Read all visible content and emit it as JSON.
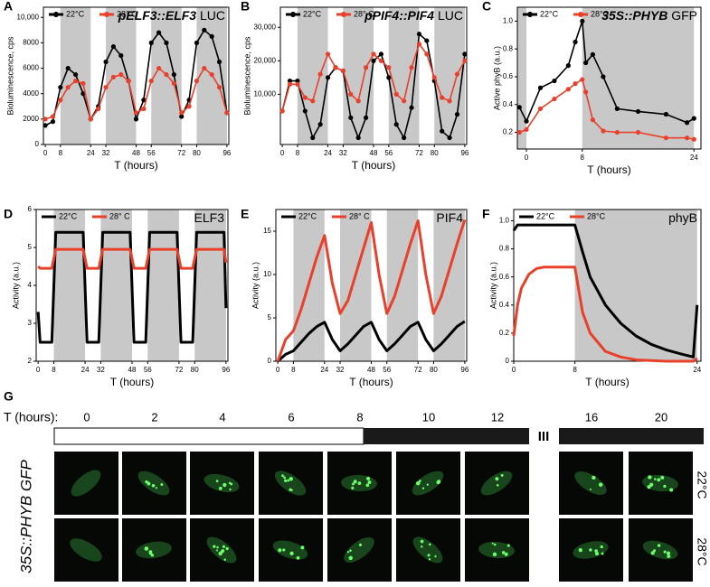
{
  "chart_data": [
    {
      "type": "line",
      "panel": "A",
      "title": "pELF3::ELF3",
      "title_suffix": "LUC",
      "ylabel": "Bioluminescence, cps",
      "xlabel": "T (hours)",
      "markers": true,
      "xlim": [
        -1,
        97
      ],
      "ylim": [
        0,
        10800
      ],
      "xticks": [
        0,
        8,
        24,
        32,
        48,
        56,
        72,
        80,
        96
      ],
      "yticks": [
        0,
        2000,
        4000,
        6000,
        8000,
        {
          "value": 10000,
          "label": "10,000"
        }
      ],
      "shaded": [
        [
          8,
          24
        ],
        [
          32,
          48
        ],
        [
          56,
          72
        ],
        [
          80,
          96
        ]
      ],
      "x": [
        0,
        4,
        8,
        12,
        16,
        20,
        24,
        28,
        32,
        36,
        40,
        44,
        48,
        52,
        56,
        60,
        64,
        68,
        72,
        76,
        80,
        84,
        88,
        92,
        96
      ],
      "series": [
        {
          "name": "22°C",
          "color": "#000000",
          "values": [
            1500,
            1800,
            4500,
            6000,
            5500,
            4000,
            2000,
            3000,
            6500,
            7700,
            7000,
            5000,
            2000,
            3500,
            8000,
            8800,
            8000,
            5500,
            2200,
            3500,
            8000,
            9000,
            8500,
            6500,
            2500
          ]
        },
        {
          "name": "28° C",
          "color": "#e8402a",
          "values": [
            2000,
            2200,
            3500,
            4500,
            5000,
            4800,
            2000,
            2800,
            4500,
            5300,
            5500,
            5000,
            2500,
            2800,
            5000,
            6000,
            5500,
            4800,
            2500,
            3000,
            5000,
            6000,
            5500,
            4500,
            2500
          ]
        }
      ]
    },
    {
      "type": "line",
      "panel": "B",
      "title": "pPIF4::PIF4",
      "title_suffix": "LUC",
      "ylabel": "Bioluminescence, cps",
      "xlabel": "T (hours)",
      "markers": true,
      "xlim": [
        -1,
        97
      ],
      "ylim": [
        -5000,
        36000
      ],
      "xticks": [
        0,
        8,
        24,
        32,
        48,
        56,
        72,
        80,
        96
      ],
      "yticks": [
        {
          "value": 10000,
          "label": "10,000"
        },
        {
          "value": 20000,
          "label": "20,000"
        },
        {
          "value": 30000,
          "label": "30,000"
        }
      ],
      "shaded": [
        [
          8,
          24
        ],
        [
          32,
          48
        ],
        [
          56,
          72
        ],
        [
          80,
          96
        ]
      ],
      "x": [
        0,
        4,
        8,
        12,
        16,
        20,
        24,
        28,
        32,
        36,
        40,
        44,
        48,
        52,
        56,
        60,
        64,
        68,
        72,
        76,
        80,
        84,
        88,
        92,
        96
      ],
      "series": [
        {
          "name": "22°C",
          "color": "#000000",
          "values": [
            5000,
            14000,
            14000,
            5000,
            -3000,
            1000,
            15000,
            18000,
            17000,
            3000,
            -3000,
            3000,
            20000,
            22000,
            15000,
            1000,
            -3000,
            6000,
            28000,
            26000,
            14000,
            -1000,
            -3000,
            4000,
            22000
          ]
        },
        {
          "name": "28° C",
          "color": "#e8402a",
          "values": [
            5000,
            13000,
            13000,
            9000,
            8000,
            16000,
            22000,
            18000,
            17000,
            10000,
            8000,
            18000,
            22000,
            20000,
            18000,
            10000,
            8000,
            18000,
            25000,
            22000,
            15000,
            9000,
            8000,
            16000,
            20000
          ]
        }
      ]
    },
    {
      "type": "line",
      "panel": "C",
      "title": "35S::PHYB",
      "title_suffix": "GFP",
      "ylabel": "Active phyB (a.u.)",
      "xlabel": "T (hours)",
      "markers": true,
      "xlim": [
        -1.3,
        25
      ],
      "ylim": [
        0.08,
        1.1
      ],
      "xticks": [
        0,
        8,
        24
      ],
      "yticks": [
        0.2,
        0.4,
        0.6,
        0.8,
        {
          "value": 1,
          "label": "1.0"
        }
      ],
      "shaded": [
        [
          -1.3,
          0
        ],
        [
          8,
          24
        ]
      ],
      "x": [
        -1,
        0,
        2,
        4,
        6,
        7,
        8,
        8.5,
        9.5,
        11,
        13,
        16,
        20,
        23,
        24
      ],
      "series": [
        {
          "name": "22°C",
          "color": "#000000",
          "values": [
            0.38,
            0.28,
            0.52,
            0.57,
            0.68,
            0.85,
            1.0,
            0.7,
            0.76,
            0.6,
            0.37,
            0.35,
            0.33,
            0.27,
            0.3
          ]
        },
        {
          "name": "28°C",
          "color": "#e8402a",
          "values": [
            0.2,
            0.22,
            0.37,
            0.44,
            0.51,
            0.55,
            0.58,
            0.49,
            0.29,
            0.21,
            0.2,
            0.2,
            0.16,
            0.16,
            0.15
          ]
        }
      ]
    },
    {
      "type": "line",
      "panel": "D",
      "title": "ELF3",
      "ylabel": "Activity (a.u.)",
      "xlabel": "T (hours)",
      "markers": false,
      "xlim": [
        -1,
        97
      ],
      "ylim": [
        2,
        6
      ],
      "xticks": [
        0,
        8,
        24,
        32,
        48,
        56,
        72,
        80,
        96
      ],
      "yticks": [
        2,
        3,
        4,
        5,
        6
      ],
      "shaded": [
        [
          8,
          24
        ],
        [
          32,
          48
        ],
        [
          56,
          72
        ],
        [
          80,
          96
        ]
      ],
      "x": [
        0,
        1,
        7,
        9,
        23,
        25,
        31,
        33,
        47,
        49,
        55,
        57,
        71,
        73,
        79,
        81,
        95,
        96
      ],
      "series": [
        {
          "name": "22°C",
          "color": "#000000",
          "values": [
            3.3,
            2.5,
            2.5,
            5.4,
            5.4,
            2.5,
            2.5,
            5.4,
            5.4,
            2.5,
            2.5,
            5.4,
            5.4,
            2.5,
            2.5,
            5.4,
            5.4,
            3.4
          ]
        },
        {
          "name": "28° C",
          "color": "#e8402a",
          "values": [
            4.5,
            4.45,
            4.45,
            4.95,
            4.95,
            4.45,
            4.45,
            4.95,
            4.95,
            4.45,
            4.45,
            4.95,
            4.95,
            4.45,
            4.45,
            4.95,
            4.95,
            4.6
          ]
        }
      ]
    },
    {
      "type": "line",
      "panel": "E",
      "title": "PIF4",
      "ylabel": "Activity (a.u.)",
      "xlabel": "T (hours)",
      "markers": false,
      "xlim": [
        -1,
        97
      ],
      "ylim": [
        0,
        17.5
      ],
      "xticks": [
        0,
        8,
        24,
        32,
        48,
        56,
        72,
        80,
        96
      ],
      "yticks": [
        0,
        5,
        10,
        15
      ],
      "shaded": [
        [
          8,
          24
        ],
        [
          32,
          48
        ],
        [
          56,
          72
        ],
        [
          80,
          96
        ]
      ],
      "x": [
        0,
        4,
        8,
        12,
        16,
        20,
        24,
        28,
        32,
        36,
        40,
        44,
        48,
        52,
        56,
        60,
        64,
        68,
        72,
        76,
        80,
        84,
        88,
        92,
        96
      ],
      "series": [
        {
          "name": "22°C",
          "color": "#000000",
          "values": [
            0,
            0.8,
            1.2,
            2.2,
            3.2,
            4,
            4.5,
            2.5,
            1.2,
            2,
            3,
            4,
            4.5,
            2.5,
            1.2,
            2,
            3,
            4,
            4.5,
            2.5,
            1.2,
            2,
            3,
            4,
            4.6
          ]
        },
        {
          "name": "28° C",
          "color": "#e8402a",
          "values": [
            0,
            2.5,
            3.5,
            6,
            9,
            12,
            14.5,
            9,
            5.5,
            7,
            10,
            13,
            16,
            10,
            5.5,
            7.5,
            10.5,
            13.5,
            16.2,
            10,
            5.5,
            7.5,
            10.5,
            13.5,
            16.3
          ]
        }
      ]
    },
    {
      "type": "line",
      "panel": "F",
      "title": "phyB",
      "ylabel": "Activity (a.u.)",
      "xlabel": "T (hours)",
      "markers": false,
      "xlim": [
        0,
        24.5
      ],
      "ylim": [
        0,
        1.08
      ],
      "xticks": [
        0,
        8,
        24
      ],
      "yticks": [
        0,
        0.2,
        0.4,
        0.6,
        0.8,
        {
          "value": 1,
          "label": "1.0"
        }
      ],
      "shaded": [
        [
          8,
          24
        ]
      ],
      "x": [
        0,
        0.5,
        1,
        2,
        3,
        4,
        8,
        9,
        10,
        12,
        14,
        16,
        18,
        20,
        22,
        23.5,
        24
      ],
      "series": [
        {
          "name": "22°C",
          "color": "#000000",
          "values": [
            0.93,
            0.97,
            0.97,
            0.97,
            0.97,
            0.97,
            0.97,
            0.78,
            0.6,
            0.4,
            0.27,
            0.18,
            0.12,
            0.08,
            0.05,
            0.03,
            0.4
          ]
        },
        {
          "name": "28°C",
          "color": "#e8402a",
          "values": [
            0.18,
            0.4,
            0.52,
            0.62,
            0.66,
            0.67,
            0.67,
            0.35,
            0.2,
            0.07,
            0.03,
            0.01,
            0.005,
            0,
            0,
            0,
            0.02
          ]
        }
      ]
    }
  ],
  "panel_g": {
    "panel": "G",
    "time_label": "T (hours):",
    "times": [
      0,
      2,
      4,
      6,
      8,
      10,
      12,
      16,
      20
    ],
    "break_mark": "III",
    "row_label": "35S::PHYB GFP",
    "temperatures": [
      "22°C",
      "28°C"
    ]
  }
}
